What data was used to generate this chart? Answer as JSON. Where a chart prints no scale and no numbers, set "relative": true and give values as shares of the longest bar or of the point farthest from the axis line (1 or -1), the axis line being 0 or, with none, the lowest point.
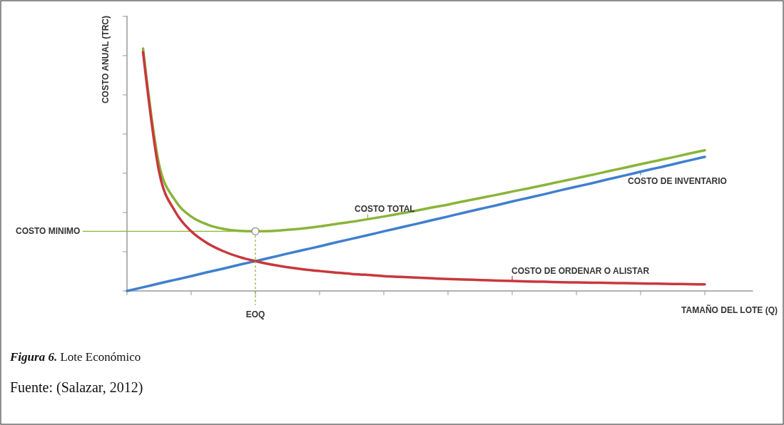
{
  "chart_data": {
    "type": "line",
    "relative": true,
    "xlabel": "TAMAÑO DEL LOTE (Q)",
    "ylabel": "COSTO ANUAL (TRC)",
    "categories": [
      null,
      null,
      null,
      null,
      null,
      null,
      null,
      null,
      null,
      null,
      null,
      null,
      null,
      null,
      null,
      null,
      null,
      null,
      null,
      null,
      null,
      null,
      null,
      null,
      null,
      null,
      null,
      null,
      null,
      null,
      null,
      null,
      null,
      null,
      null,
      null,
      null,
      null,
      null,
      null
    ],
    "series": [
      {
        "name": "COSTO TOTAL",
        "color": "#8ab43a",
        "values": [
          null,
          1,
          0.522,
          0.374,
          0.307,
          0.274,
          0.256,
          0.248,
          0.246,
          0.247,
          0.252,
          0.258,
          0.266,
          0.276,
          0.285,
          0.296,
          0.307,
          0.319,
          0.331,
          0.344,
          0.356,
          0.37,
          0.383,
          0.396,
          0.41,
          0.423,
          0.437,
          0.451,
          0.465,
          0.479,
          0.494,
          0.508,
          0.523,
          0.537,
          0.551,
          0.566,
          0.58,
          null,
          null,
          null
        ]
      },
      {
        "name": "COSTO DE INVENTARIO",
        "color": "#3f7fcf",
        "values": [
          0,
          0.015,
          0.031,
          0.046,
          0.061,
          0.077,
          0.092,
          0.108,
          0.123,
          0.138,
          0.154,
          0.169,
          0.184,
          0.2,
          0.215,
          0.23,
          0.246,
          0.261,
          0.276,
          0.292,
          0.307,
          0.323,
          0.338,
          0.353,
          0.369,
          0.384,
          0.399,
          0.415,
          0.43,
          0.445,
          0.461,
          0.476,
          0.492,
          0.507,
          0.522,
          0.538,
          0.553,
          null,
          null,
          null
        ]
      },
      {
        "name": "COSTO DE ORDENAR O ALISTAR",
        "color": "#c8383c",
        "values": [
          null,
          0.985,
          0.492,
          0.328,
          0.246,
          0.197,
          0.164,
          0.14,
          0.123,
          0.109,
          0.098,
          0.089,
          0.082,
          0.076,
          0.07,
          0.066,
          0.061,
          0.058,
          0.055,
          0.052,
          0.049,
          0.047,
          0.045,
          0.043,
          0.041,
          0.039,
          0.038,
          0.036,
          0.035,
          0.034,
          0.033,
          0.032,
          0.031,
          0.03,
          0.029,
          0.028,
          0.027,
          null,
          null,
          null
        ]
      }
    ],
    "ref_lines": [
      {
        "axis": "y",
        "value": 0.246,
        "label": "COSTO MINIMO",
        "color": "#8ab43a"
      }
    ],
    "annotations": [
      {
        "text": "EOQ"
      },
      "Figura 6. Lote Económico",
      "Fuente: (Salazar, 2012)"
    ]
  }
}
